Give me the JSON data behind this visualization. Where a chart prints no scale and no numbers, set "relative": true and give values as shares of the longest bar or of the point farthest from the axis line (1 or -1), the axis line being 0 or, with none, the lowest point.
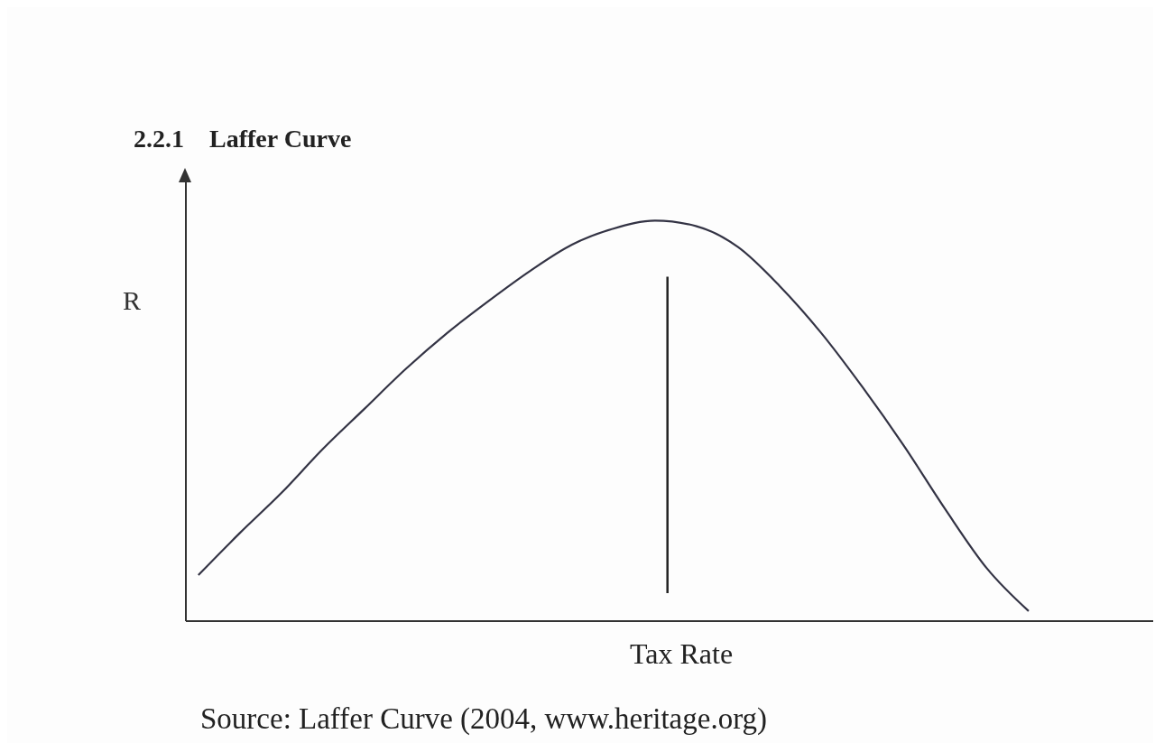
{
  "chart_data": {
    "type": "line",
    "title": "2.2.1    Laffer Curve",
    "xlabel": "Tax Rate",
    "ylabel": "R",
    "annotations": [
      "Source: Laffer Curve (2004, www.heritage.org)"
    ],
    "categories": [
      null,
      null,
      null,
      null,
      null,
      null,
      null,
      null,
      null,
      null,
      null,
      null,
      null,
      null,
      null,
      null,
      null,
      null,
      null,
      null,
      null,
      null,
      null,
      null
    ],
    "series": [
      {
        "color": "#333344",
        "values": [
          0.115,
          0.22,
          0.32,
          0.43,
          0.53,
          0.63,
          0.72,
          0.8,
          0.875,
          0.94,
          0.98,
          1.0,
          0.986,
          0.934,
          0.837,
          0.72,
          0.584,
          0.437,
          0.278,
          0.131,
          0.025,
          null,
          null,
          null
        ]
      }
    ],
    "relative": true,
    "grid": false,
    "legend": false,
    "marker": "none",
    "line_style": "solid"
  }
}
